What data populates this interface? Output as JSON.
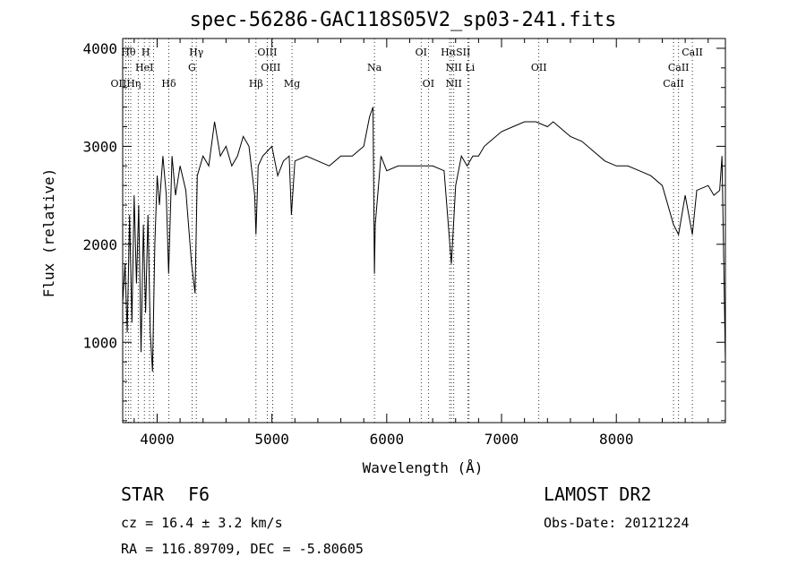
{
  "title": "spec-56286-GAC118S05V2_sp03-241.fits",
  "info": {
    "class_label": "STAR",
    "subclass": "F6",
    "survey": "LAMOST DR2",
    "cz": "cz = 16.4 ± 3.2 km/s",
    "obs_date": "Obs-Date: 20121224",
    "coords": "RA = 116.89709, DEC =  -5.80605"
  },
  "chart_data": {
    "type": "line",
    "title": "spec-56286-GAC118S05V2_sp03-241.fits",
    "xlabel": "Wavelength (Å)",
    "ylabel": "Flux (relative)",
    "xlim": [
      3700,
      8950
    ],
    "ylim": [
      180,
      4100
    ],
    "xticks": [
      4000,
      5000,
      6000,
      7000,
      8000
    ],
    "yticks": [
      1000,
      2000,
      3000,
      4000
    ],
    "grid": false,
    "series": [
      {
        "values": [
          [
            3700,
            1400
          ],
          [
            3720,
            1800
          ],
          [
            3740,
            1100
          ],
          [
            3760,
            2300
          ],
          [
            3780,
            1200
          ],
          [
            3800,
            2500
          ],
          [
            3820,
            1600
          ],
          [
            3840,
            2400
          ],
          [
            3860,
            900
          ],
          [
            3880,
            2200
          ],
          [
            3900,
            1300
          ],
          [
            3920,
            2300
          ],
          [
            3940,
            1100
          ],
          [
            3960,
            700
          ],
          [
            3980,
            2000
          ],
          [
            4000,
            2700
          ],
          [
            4020,
            2400
          ],
          [
            4050,
            2900
          ],
          [
            4080,
            2500
          ],
          [
            4100,
            1700
          ],
          [
            4130,
            2900
          ],
          [
            4160,
            2500
          ],
          [
            4200,
            2800
          ],
          [
            4250,
            2550
          ],
          [
            4300,
            1800
          ],
          [
            4330,
            1500
          ],
          [
            4350,
            2700
          ],
          [
            4400,
            2900
          ],
          [
            4450,
            2800
          ],
          [
            4500,
            3250
          ],
          [
            4550,
            2900
          ],
          [
            4600,
            3000
          ],
          [
            4650,
            2800
          ],
          [
            4700,
            2900
          ],
          [
            4750,
            3100
          ],
          [
            4800,
            3000
          ],
          [
            4850,
            2500
          ],
          [
            4861,
            2100
          ],
          [
            4880,
            2800
          ],
          [
            4920,
            2900
          ],
          [
            4960,
            2950
          ],
          [
            5000,
            3000
          ],
          [
            5050,
            2700
          ],
          [
            5100,
            2850
          ],
          [
            5150,
            2900
          ],
          [
            5170,
            2300
          ],
          [
            5200,
            2850
          ],
          [
            5300,
            2900
          ],
          [
            5400,
            2850
          ],
          [
            5500,
            2800
          ],
          [
            5600,
            2900
          ],
          [
            5700,
            2900
          ],
          [
            5800,
            3000
          ],
          [
            5850,
            3300
          ],
          [
            5880,
            3400
          ],
          [
            5893,
            1700
          ],
          [
            5900,
            2200
          ],
          [
            5950,
            2900
          ],
          [
            6000,
            2750
          ],
          [
            6100,
            2800
          ],
          [
            6200,
            2800
          ],
          [
            6300,
            2800
          ],
          [
            6400,
            2800
          ],
          [
            6500,
            2750
          ],
          [
            6563,
            1800
          ],
          [
            6600,
            2600
          ],
          [
            6650,
            2900
          ],
          [
            6700,
            2800
          ],
          [
            6750,
            2900
          ],
          [
            6800,
            2900
          ],
          [
            6850,
            3000
          ],
          [
            6900,
            3050
          ],
          [
            7000,
            3150
          ],
          [
            7100,
            3200
          ],
          [
            7200,
            3250
          ],
          [
            7300,
            3250
          ],
          [
            7400,
            3200
          ],
          [
            7450,
            3250
          ],
          [
            7500,
            3200
          ],
          [
            7550,
            3150
          ],
          [
            7600,
            3100
          ],
          [
            7700,
            3050
          ],
          [
            7800,
            2950
          ],
          [
            7900,
            2850
          ],
          [
            8000,
            2800
          ],
          [
            8100,
            2800
          ],
          [
            8200,
            2750
          ],
          [
            8300,
            2700
          ],
          [
            8400,
            2600
          ],
          [
            8498,
            2200
          ],
          [
            8542,
            2100
          ],
          [
            8600,
            2500
          ],
          [
            8662,
            2100
          ],
          [
            8700,
            2550
          ],
          [
            8800,
            2600
          ],
          [
            8850,
            2500
          ],
          [
            8900,
            2550
          ],
          [
            8920,
            2900
          ],
          [
            8950,
            800
          ]
        ]
      }
    ],
    "annotation_labels": [
      "Hθ",
      "H",
      "Hγ",
      "OIII",
      "OI",
      "HαSII",
      "CaII",
      "HeI",
      "G",
      "OIII",
      "NII Li",
      "OII",
      "CaII",
      "OIIHη",
      "Hδ",
      "Hβ",
      "Mg",
      "Na",
      "OI",
      "NII",
      "CaII"
    ],
    "line_positions": [
      3727,
      3750,
      3770,
      3835,
      3889,
      3934,
      3970,
      4102,
      4304,
      4341,
      4861,
      4959,
      5007,
      5175,
      5893,
      6300,
      6363,
      6548,
      6563,
      6584,
      6708,
      6717,
      7325,
      8498,
      8542,
      8662
    ]
  }
}
